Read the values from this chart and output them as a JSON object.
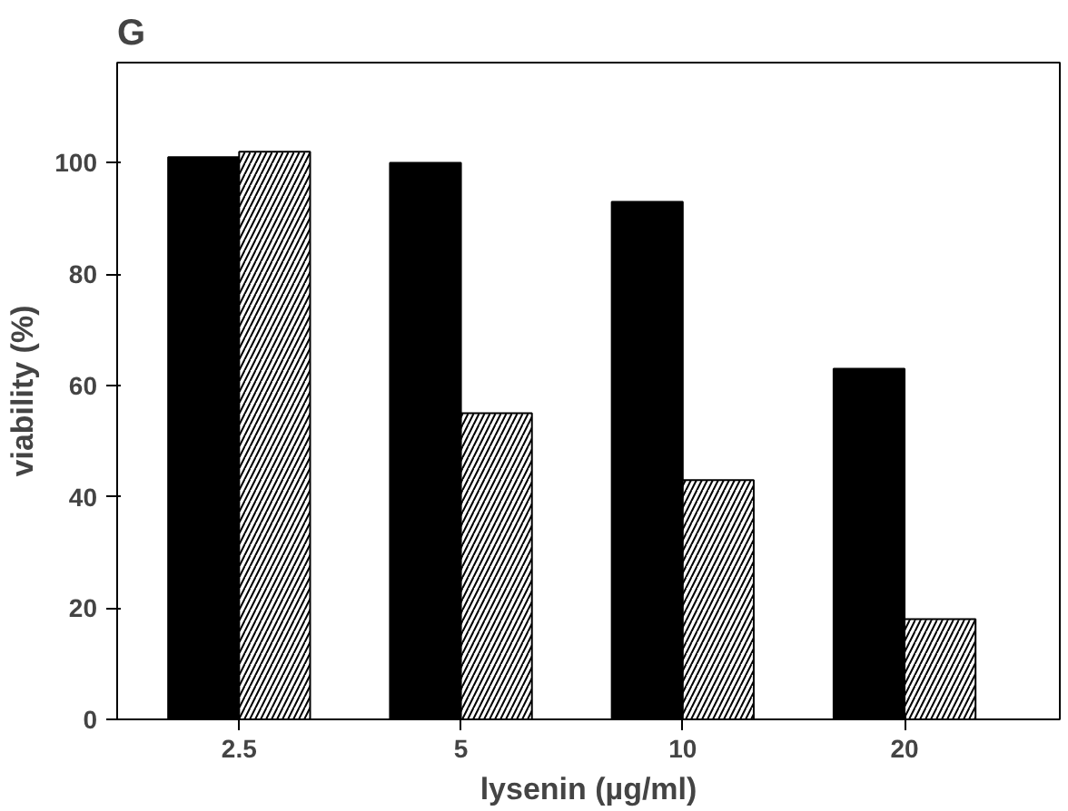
{
  "chart_data": {
    "type": "bar",
    "title": "G",
    "xlabel": "lysenin (µg/ml)",
    "ylabel": "viability (%)",
    "categories": [
      "2.5",
      "5",
      "10",
      "20"
    ],
    "series": [
      {
        "color": "#000000",
        "values": [
          101,
          100,
          93,
          63
        ]
      },
      {
        "color": "#ffffff",
        "values": [
          102,
          55,
          43,
          18
        ]
      }
    ],
    "ylim": [
      0,
      118
    ],
    "yticks": [
      0,
      20,
      40,
      60,
      80,
      100
    ],
    "grid": false
  }
}
